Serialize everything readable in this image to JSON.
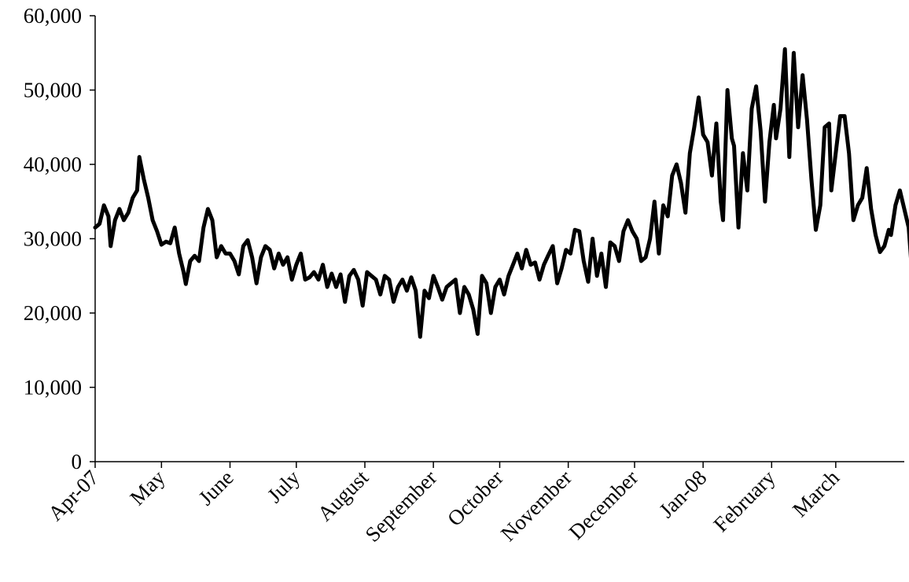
{
  "chart_data": {
    "type": "line",
    "title": "",
    "xlabel": "",
    "ylabel": "",
    "ylim": [
      0,
      60000
    ],
    "y_ticks": [
      0,
      10000,
      20000,
      30000,
      40000,
      50000,
      60000
    ],
    "y_tick_labels": [
      "0",
      "10,000",
      "20,000",
      "30,000",
      "40,000",
      "50,000",
      "60,000"
    ],
    "x_start": "2007-04-01",
    "x_end": "2008-03-31",
    "x_ticks": [
      "2007-04-01",
      "2007-05-01",
      "2007-06-01",
      "2007-07-01",
      "2007-08-01",
      "2007-09-01",
      "2007-10-01",
      "2007-11-01",
      "2007-12-01",
      "2008-01-01",
      "2008-02-01",
      "2008-03-01"
    ],
    "x_tick_labels": [
      "Apr-07",
      "May",
      "June",
      "July",
      "August",
      "September",
      "October",
      "November",
      "December",
      "Jan-08",
      "February",
      "March"
    ],
    "grid": false,
    "legend": "none",
    "series": [
      {
        "color": "#000000",
        "points": [
          [
            "2007-04-01",
            31500
          ],
          [
            "2007-04-03",
            32000
          ],
          [
            "2007-04-05",
            34500
          ],
          [
            "2007-04-07",
            33000
          ],
          [
            "2007-04-08",
            29000
          ],
          [
            "2007-04-10",
            32500
          ],
          [
            "2007-04-12",
            34000
          ],
          [
            "2007-04-14",
            32500
          ],
          [
            "2007-04-16",
            33500
          ],
          [
            "2007-04-18",
            35500
          ],
          [
            "2007-04-20",
            36500
          ],
          [
            "2007-04-21",
            41000
          ],
          [
            "2007-04-23",
            38000
          ],
          [
            "2007-04-25",
            35500
          ],
          [
            "2007-04-27",
            32500
          ],
          [
            "2007-04-29",
            31000
          ],
          [
            "2007-05-01",
            29200
          ],
          [
            "2007-05-03",
            29600
          ],
          [
            "2007-05-05",
            29400
          ],
          [
            "2007-05-07",
            31500
          ],
          [
            "2007-05-09",
            28000
          ],
          [
            "2007-05-11",
            25500
          ],
          [
            "2007-05-12",
            23900
          ],
          [
            "2007-05-14",
            27000
          ],
          [
            "2007-05-16",
            27700
          ],
          [
            "2007-05-18",
            27000
          ],
          [
            "2007-05-20",
            31500
          ],
          [
            "2007-05-22",
            34000
          ],
          [
            "2007-05-24",
            32500
          ],
          [
            "2007-05-26",
            27500
          ],
          [
            "2007-05-28",
            29000
          ],
          [
            "2007-05-30",
            28000
          ],
          [
            "2007-06-01",
            28000
          ],
          [
            "2007-06-03",
            27000
          ],
          [
            "2007-06-05",
            25200
          ],
          [
            "2007-06-07",
            29000
          ],
          [
            "2007-06-09",
            29800
          ],
          [
            "2007-06-11",
            27500
          ],
          [
            "2007-06-13",
            24000
          ],
          [
            "2007-06-15",
            27500
          ],
          [
            "2007-06-17",
            29000
          ],
          [
            "2007-06-19",
            28500
          ],
          [
            "2007-06-21",
            26000
          ],
          [
            "2007-06-23",
            28000
          ],
          [
            "2007-06-25",
            26500
          ],
          [
            "2007-06-27",
            27500
          ],
          [
            "2007-06-29",
            24500
          ],
          [
            "2007-07-01",
            26500
          ],
          [
            "2007-07-03",
            28000
          ],
          [
            "2007-07-05",
            24500
          ],
          [
            "2007-07-07",
            24800
          ],
          [
            "2007-07-09",
            25500
          ],
          [
            "2007-07-11",
            24500
          ],
          [
            "2007-07-13",
            26500
          ],
          [
            "2007-07-15",
            23500
          ],
          [
            "2007-07-17",
            25300
          ],
          [
            "2007-07-19",
            23500
          ],
          [
            "2007-07-21",
            25200
          ],
          [
            "2007-07-23",
            21500
          ],
          [
            "2007-07-25",
            25000
          ],
          [
            "2007-07-27",
            25800
          ],
          [
            "2007-07-29",
            24500
          ],
          [
            "2007-07-31",
            21000
          ],
          [
            "2007-08-02",
            25500
          ],
          [
            "2007-08-04",
            25000
          ],
          [
            "2007-08-06",
            24500
          ],
          [
            "2007-08-08",
            22500
          ],
          [
            "2007-08-10",
            25000
          ],
          [
            "2007-08-12",
            24500
          ],
          [
            "2007-08-14",
            21500
          ],
          [
            "2007-08-16",
            23500
          ],
          [
            "2007-08-18",
            24500
          ],
          [
            "2007-08-20",
            23000
          ],
          [
            "2007-08-22",
            24800
          ],
          [
            "2007-08-24",
            23000
          ],
          [
            "2007-08-26",
            16800
          ],
          [
            "2007-08-28",
            23000
          ],
          [
            "2007-08-30",
            22000
          ],
          [
            "2007-09-01",
            25000
          ],
          [
            "2007-09-03",
            23500
          ],
          [
            "2007-09-05",
            21800
          ],
          [
            "2007-09-07",
            23500
          ],
          [
            "2007-09-09",
            24000
          ],
          [
            "2007-09-11",
            24500
          ],
          [
            "2007-09-13",
            20000
          ],
          [
            "2007-09-15",
            23500
          ],
          [
            "2007-09-17",
            22500
          ],
          [
            "2007-09-19",
            20500
          ],
          [
            "2007-09-21",
            17200
          ],
          [
            "2007-09-23",
            25000
          ],
          [
            "2007-09-25",
            24000
          ],
          [
            "2007-09-27",
            20000
          ],
          [
            "2007-09-29",
            23500
          ],
          [
            "2007-10-01",
            24500
          ],
          [
            "2007-10-03",
            22500
          ],
          [
            "2007-10-05",
            25000
          ],
          [
            "2007-10-07",
            26500
          ],
          [
            "2007-10-09",
            28000
          ],
          [
            "2007-10-11",
            26000
          ],
          [
            "2007-10-13",
            28500
          ],
          [
            "2007-10-15",
            26500
          ],
          [
            "2007-10-17",
            26800
          ],
          [
            "2007-10-19",
            24500
          ],
          [
            "2007-10-21",
            26500
          ],
          [
            "2007-10-23",
            27800
          ],
          [
            "2007-10-25",
            29000
          ],
          [
            "2007-10-27",
            24000
          ],
          [
            "2007-10-29",
            26000
          ],
          [
            "2007-10-31",
            28500
          ],
          [
            "2007-11-02",
            28000
          ],
          [
            "2007-11-04",
            31200
          ],
          [
            "2007-11-06",
            31000
          ],
          [
            "2007-11-08",
            27000
          ],
          [
            "2007-11-10",
            24200
          ],
          [
            "2007-11-12",
            30000
          ],
          [
            "2007-11-14",
            25000
          ],
          [
            "2007-11-16",
            28000
          ],
          [
            "2007-11-18",
            23500
          ],
          [
            "2007-11-20",
            29500
          ],
          [
            "2007-11-22",
            29000
          ],
          [
            "2007-11-24",
            27000
          ],
          [
            "2007-11-26",
            31000
          ],
          [
            "2007-11-28",
            32500
          ],
          [
            "2007-11-30",
            31000
          ],
          [
            "2007-12-02",
            30000
          ],
          [
            "2007-12-04",
            27000
          ],
          [
            "2007-12-06",
            27500
          ],
          [
            "2007-12-08",
            30000
          ],
          [
            "2007-12-10",
            35000
          ],
          [
            "2007-12-12",
            28000
          ],
          [
            "2007-12-14",
            34500
          ],
          [
            "2007-12-16",
            33000
          ],
          [
            "2007-12-18",
            38500
          ],
          [
            "2007-12-20",
            40000
          ],
          [
            "2007-12-22",
            37500
          ],
          [
            "2007-12-24",
            33500
          ],
          [
            "2007-12-26",
            41500
          ],
          [
            "2007-12-28",
            45000
          ],
          [
            "2007-12-30",
            49000
          ],
          [
            "2008-01-01",
            44000
          ],
          [
            "2008-01-03",
            43000
          ],
          [
            "2008-01-05",
            38500
          ],
          [
            "2008-01-07",
            45500
          ],
          [
            "2008-01-09",
            35000
          ],
          [
            "2008-01-10",
            32500
          ],
          [
            "2008-01-12",
            50000
          ],
          [
            "2008-01-14",
            43500
          ],
          [
            "2008-01-15",
            42500
          ],
          [
            "2008-01-17",
            31500
          ],
          [
            "2008-01-19",
            41500
          ],
          [
            "2008-01-21",
            36500
          ],
          [
            "2008-01-23",
            47500
          ],
          [
            "2008-01-25",
            50500
          ],
          [
            "2008-01-27",
            44500
          ],
          [
            "2008-01-29",
            35000
          ],
          [
            "2008-01-31",
            43000
          ],
          [
            "2008-02-02",
            48000
          ],
          [
            "2008-02-03",
            43500
          ],
          [
            "2008-02-05",
            47500
          ],
          [
            "2008-02-07",
            55500
          ],
          [
            "2008-02-09",
            41000
          ],
          [
            "2008-02-11",
            55000
          ],
          [
            "2008-02-13",
            45000
          ],
          [
            "2008-02-15",
            52000
          ],
          [
            "2008-02-17",
            46000
          ],
          [
            "2008-02-19",
            38000
          ],
          [
            "2008-02-21",
            31200
          ],
          [
            "2008-02-23",
            34500
          ],
          [
            "2008-02-25",
            45000
          ],
          [
            "2008-02-27",
            45500
          ],
          [
            "2008-02-28",
            36500
          ],
          [
            "2008-03-01",
            41500
          ],
          [
            "2008-03-03",
            46500
          ],
          [
            "2008-03-05",
            46500
          ],
          [
            "2008-03-07",
            41500
          ],
          [
            "2008-03-09",
            32500
          ],
          [
            "2008-03-11",
            34500
          ],
          [
            "2008-03-13",
            35500
          ],
          [
            "2008-03-15",
            39500
          ],
          [
            "2008-03-17",
            34000
          ],
          [
            "2008-03-19",
            30500
          ],
          [
            "2008-03-21",
            28200
          ],
          [
            "2008-03-23",
            29000
          ],
          [
            "2008-03-25",
            31200
          ],
          [
            "2008-03-26",
            30500
          ],
          [
            "2008-03-28",
            34500
          ],
          [
            "2008-03-30",
            36500
          ],
          [
            "2008-04-01",
            34000
          ],
          [
            "2008-04-03",
            31500
          ],
          [
            "2008-04-05",
            23500
          ],
          [
            "2008-04-07",
            30500
          ]
        ]
      }
    ]
  }
}
